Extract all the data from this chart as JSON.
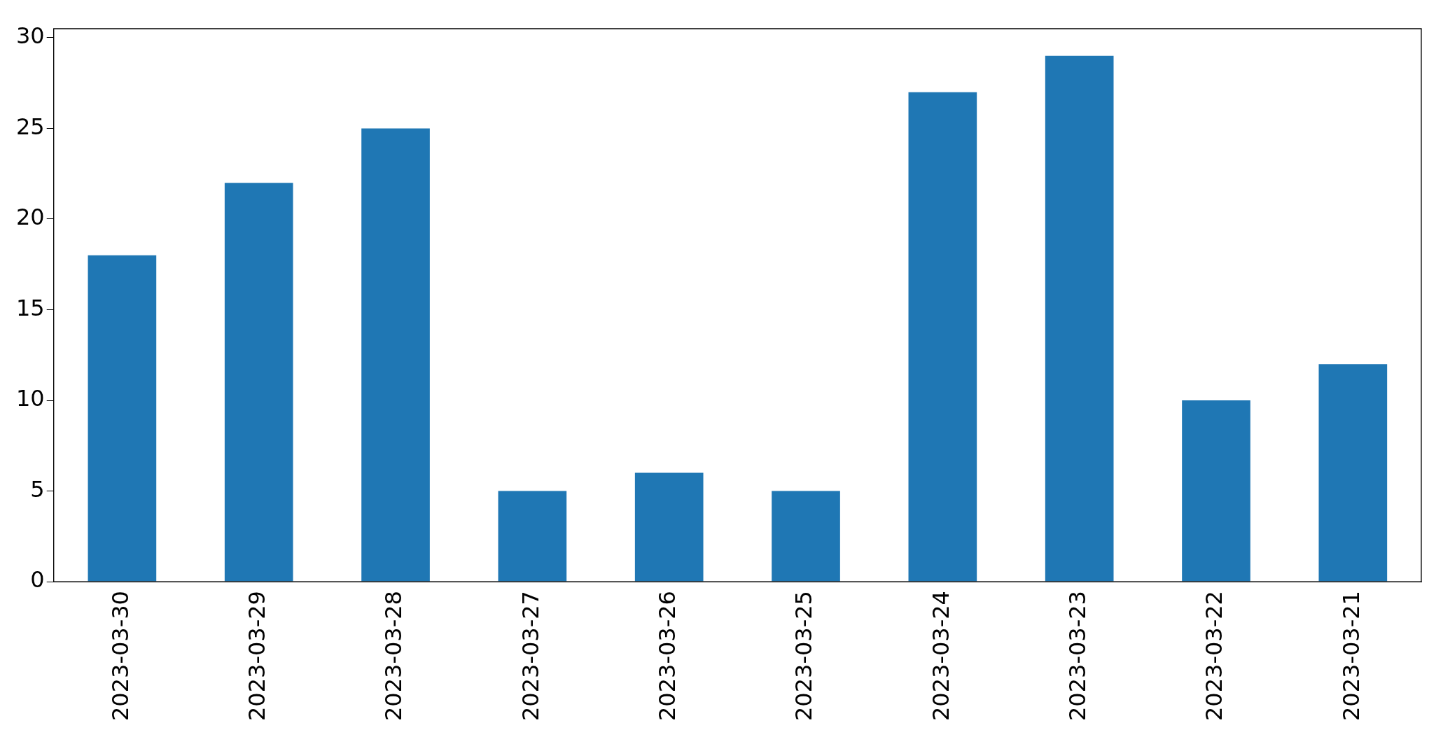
{
  "chart_data": {
    "type": "bar",
    "categories": [
      "2023-03-30",
      "2023-03-29",
      "2023-03-28",
      "2023-03-27",
      "2023-03-26",
      "2023-03-25",
      "2023-03-24",
      "2023-03-23",
      "2023-03-22",
      "2023-03-21"
    ],
    "values": [
      18,
      22,
      25,
      5,
      6,
      5,
      27,
      29,
      10,
      12
    ],
    "color": "#1f77b4",
    "ylim": [
      0,
      30.5
    ],
    "yticks": [
      0,
      5,
      10,
      15,
      20,
      25,
      30
    ],
    "grid": false,
    "legend": false
  }
}
